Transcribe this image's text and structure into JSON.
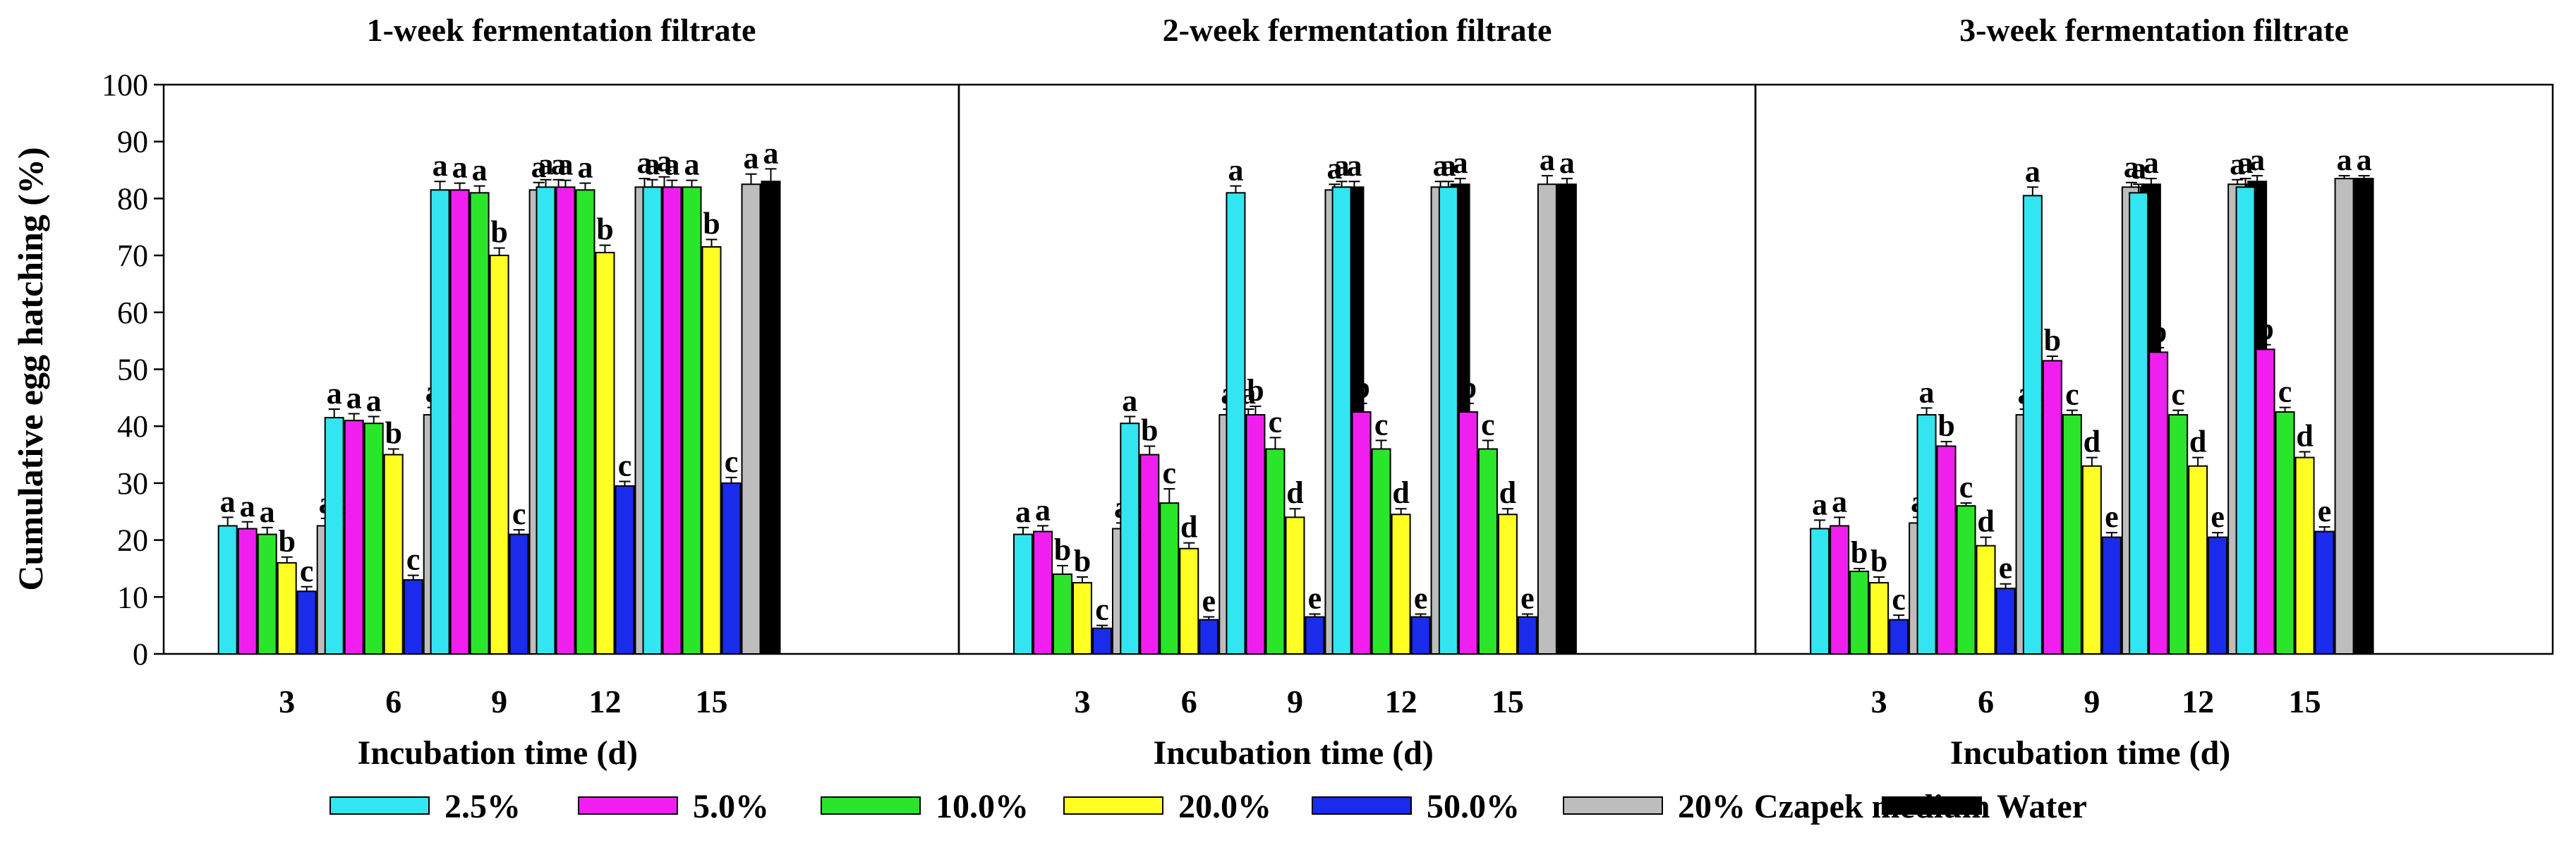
{
  "y_axis_label": "Cumulative egg hatching (%)",
  "x_axis_label": "Incubation time (d)",
  "legend": [
    {
      "label": "2.5%",
      "color": "#33E5F0"
    },
    {
      "label": "5.0%",
      "color": "#F01FF0"
    },
    {
      "label": "10.0%",
      "color": "#2BE52B"
    },
    {
      "label": "20.0%",
      "color": "#FFFF24"
    },
    {
      "label": "50.0%",
      "color": "#1A2BEB"
    },
    {
      "label": "20% Czapek medium",
      "color": "#BDBDBD"
    },
    {
      "label": "Water",
      "color": "#000000"
    }
  ],
  "chart_data": [
    {
      "type": "bar",
      "title": "1-week fermentation filtrate",
      "xlabel": "Incubation time (d)",
      "ylabel": "Cumulative egg hatching (%)",
      "ylim": [
        0,
        100
      ],
      "yticks": [
        "0",
        "10",
        "20",
        "30",
        "40",
        "50",
        "60",
        "70",
        "80",
        "90",
        "100"
      ],
      "categories": [
        "3",
        "6",
        "9",
        "12",
        "15"
      ],
      "series": [
        {
          "name": "2.5%",
          "values": [
            22.5,
            41.5,
            81.5,
            82,
            82
          ],
          "errors": [
            1.5,
            1.5,
            1.5,
            1.3,
            1.3
          ],
          "letters": [
            "a",
            "a",
            "a",
            "a",
            "a"
          ]
        },
        {
          "name": "5.0%",
          "values": [
            22,
            41,
            81.5,
            82,
            82
          ],
          "errors": [
            1.2,
            1.2,
            1.2,
            1.2,
            1.2
          ],
          "letters": [
            "a",
            "a",
            "a",
            "a",
            "a"
          ]
        },
        {
          "name": "10.0%",
          "values": [
            21,
            40.5,
            81,
            81.5,
            82
          ],
          "errors": [
            1.2,
            1.2,
            1.2,
            1.2,
            1.2
          ],
          "letters": [
            "a",
            "a",
            "a",
            "a",
            "a"
          ]
        },
        {
          "name": "20.0%",
          "values": [
            16,
            35,
            70,
            70.5,
            71.5
          ],
          "errors": [
            1.0,
            1.0,
            1.3,
            1.3,
            1.3
          ],
          "letters": [
            "b",
            "b",
            "b",
            "b",
            "b"
          ]
        },
        {
          "name": "50.0%",
          "values": [
            11,
            13,
            21,
            29.5,
            30
          ],
          "errors": [
            0.8,
            0.8,
            0.8,
            0.8,
            1.0
          ],
          "letters": [
            "c",
            "c",
            "c",
            "c",
            "c"
          ]
        },
        {
          "name": "20% Czapek medium",
          "values": [
            22.5,
            42,
            81.5,
            82,
            82.5
          ],
          "errors": [
            1.3,
            1.3,
            1.3,
            1.5,
            1.8
          ],
          "letters": [
            "a",
            "a",
            "a",
            "a",
            "a"
          ]
        },
        {
          "name": "Water",
          "values": [
            22,
            40.5,
            81.5,
            82,
            83
          ],
          "errors": [
            1.5,
            1.5,
            1.8,
            1.8,
            2.2
          ],
          "letters": [
            "a",
            "a",
            "a",
            "a",
            "a"
          ]
        }
      ]
    },
    {
      "type": "bar",
      "title": "2-week fermentation filtrate",
      "xlabel": "Incubation time (d)",
      "ylabel": "Cumulative egg hatching (%)",
      "ylim": [
        0,
        100
      ],
      "categories": [
        "3",
        "6",
        "9",
        "12",
        "15"
      ],
      "series": [
        {
          "name": "2.5%",
          "values": [
            21,
            40.5,
            81,
            82,
            82
          ],
          "errors": [
            1.2,
            1.2,
            1.2,
            1.0,
            1.0
          ],
          "letters": [
            "a",
            "a",
            "a",
            "a",
            "a"
          ]
        },
        {
          "name": "5.0%",
          "values": [
            21.5,
            35,
            42,
            42.5,
            42.5
          ],
          "errors": [
            1.0,
            1.5,
            1.5,
            1.5,
            1.5
          ],
          "letters": [
            "a",
            "b",
            "b",
            "b",
            "b"
          ]
        },
        {
          "name": "10.0%",
          "values": [
            14,
            26.5,
            36,
            36,
            36
          ],
          "errors": [
            1.5,
            2.5,
            2.0,
            1.5,
            1.5
          ],
          "letters": [
            "b",
            "c",
            "c",
            "c",
            "c"
          ]
        },
        {
          "name": "20.0%",
          "values": [
            12.5,
            18.5,
            24,
            24.5,
            24.5
          ],
          "errors": [
            1.0,
            1.0,
            1.5,
            1.0,
            1.0
          ],
          "letters": [
            "b",
            "d",
            "d",
            "d",
            "d"
          ]
        },
        {
          "name": "50.0%",
          "values": [
            4.5,
            6,
            6.5,
            6.5,
            6.5
          ],
          "errors": [
            0.5,
            0.5,
            0.5,
            0.5,
            0.5
          ],
          "letters": [
            "c",
            "e",
            "e",
            "e",
            "e"
          ]
        },
        {
          "name": "20% Czapek medium",
          "values": [
            22,
            42,
            81.5,
            82,
            82.5
          ],
          "errors": [
            1.0,
            1.0,
            1.0,
            1.0,
            1.5
          ],
          "letters": [
            "a",
            "a",
            "a",
            "a",
            "a"
          ]
        },
        {
          "name": "Water",
          "values": [
            21.5,
            41.5,
            82,
            82.5,
            82.5
          ],
          "errors": [
            1.0,
            1.5,
            1.0,
            1.0,
            1.0
          ],
          "letters": [
            "a",
            "a",
            "a",
            "a",
            "a"
          ]
        }
      ]
    },
    {
      "type": "bar",
      "title": "3-week fermentation filtrate",
      "xlabel": "Incubation time (d)",
      "ylabel": "Cumulative egg hatching (%)",
      "ylim": [
        0,
        100
      ],
      "categories": [
        "3",
        "6",
        "9",
        "12",
        "15"
      ],
      "series": [
        {
          "name": "2.5%",
          "values": [
            22,
            42,
            80.5,
            81,
            82
          ],
          "errors": [
            1.5,
            1.2,
            1.5,
            1.5,
            1.5
          ],
          "letters": [
            "a",
            "a",
            "a",
            "a",
            "a"
          ]
        },
        {
          "name": "5.0%",
          "values": [
            22.5,
            36.5,
            51.5,
            53,
            53.5
          ],
          "errors": [
            1.5,
            0.8,
            0.8,
            0.8,
            0.8
          ],
          "letters": [
            "a",
            "b",
            "b",
            "b",
            "b"
          ]
        },
        {
          "name": "10.0%",
          "values": [
            14.5,
            26,
            42,
            42,
            42.5
          ],
          "errors": [
            0.5,
            0.5,
            0.8,
            0.8,
            0.8
          ],
          "letters": [
            "b",
            "c",
            "c",
            "c",
            "c"
          ]
        },
        {
          "name": "20.0%",
          "values": [
            12.5,
            19,
            33,
            33,
            34.5
          ],
          "errors": [
            1.0,
            1.5,
            1.5,
            1.5,
            1.0
          ],
          "letters": [
            "b",
            "d",
            "d",
            "d",
            "d"
          ]
        },
        {
          "name": "50.0%",
          "values": [
            6,
            11.5,
            20.5,
            20.5,
            21.5
          ],
          "errors": [
            0.8,
            0.8,
            0.8,
            0.8,
            0.8
          ],
          "letters": [
            "c",
            "e",
            "e",
            "e",
            "e"
          ]
        },
        {
          "name": "20% Czapek medium",
          "values": [
            23,
            42,
            82,
            82.5,
            83.5
          ],
          "errors": [
            1.0,
            1.0,
            0.8,
            0.8,
            0.5
          ],
          "letters": [
            "a",
            "a",
            "a",
            "a",
            "a"
          ]
        },
        {
          "name": "Water",
          "values": [
            23.5,
            42,
            82.5,
            83,
            83.5
          ],
          "errors": [
            1.5,
            1.5,
            1.0,
            1.0,
            0.5
          ],
          "letters": [
            "a",
            "a",
            "a",
            "a",
            "a"
          ]
        }
      ]
    }
  ]
}
